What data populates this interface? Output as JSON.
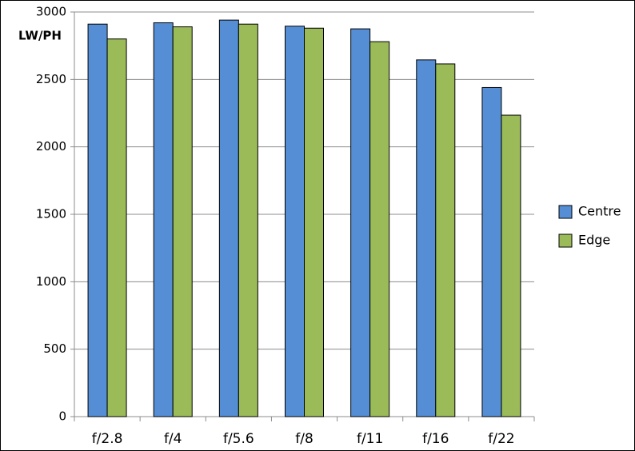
{
  "chart_data": {
    "type": "bar",
    "y_label": "LW/PH",
    "categories": [
      "f/2.8",
      "f/4",
      "f/5.6",
      "f/8",
      "f/11",
      "f/16",
      "f/22"
    ],
    "series": [
      {
        "name": "Centre",
        "color": "#558ed5",
        "values": [
          2910,
          2920,
          2940,
          2895,
          2875,
          2645,
          2440
        ]
      },
      {
        "name": "Edge",
        "color": "#9bbb59",
        "values": [
          2800,
          2890,
          2910,
          2880,
          2780,
          2615,
          2235
        ]
      }
    ],
    "ylim": [
      0,
      3000
    ],
    "yticks": [
      0,
      500,
      1000,
      1500,
      2000,
      2500,
      3000
    ],
    "grid": true
  }
}
